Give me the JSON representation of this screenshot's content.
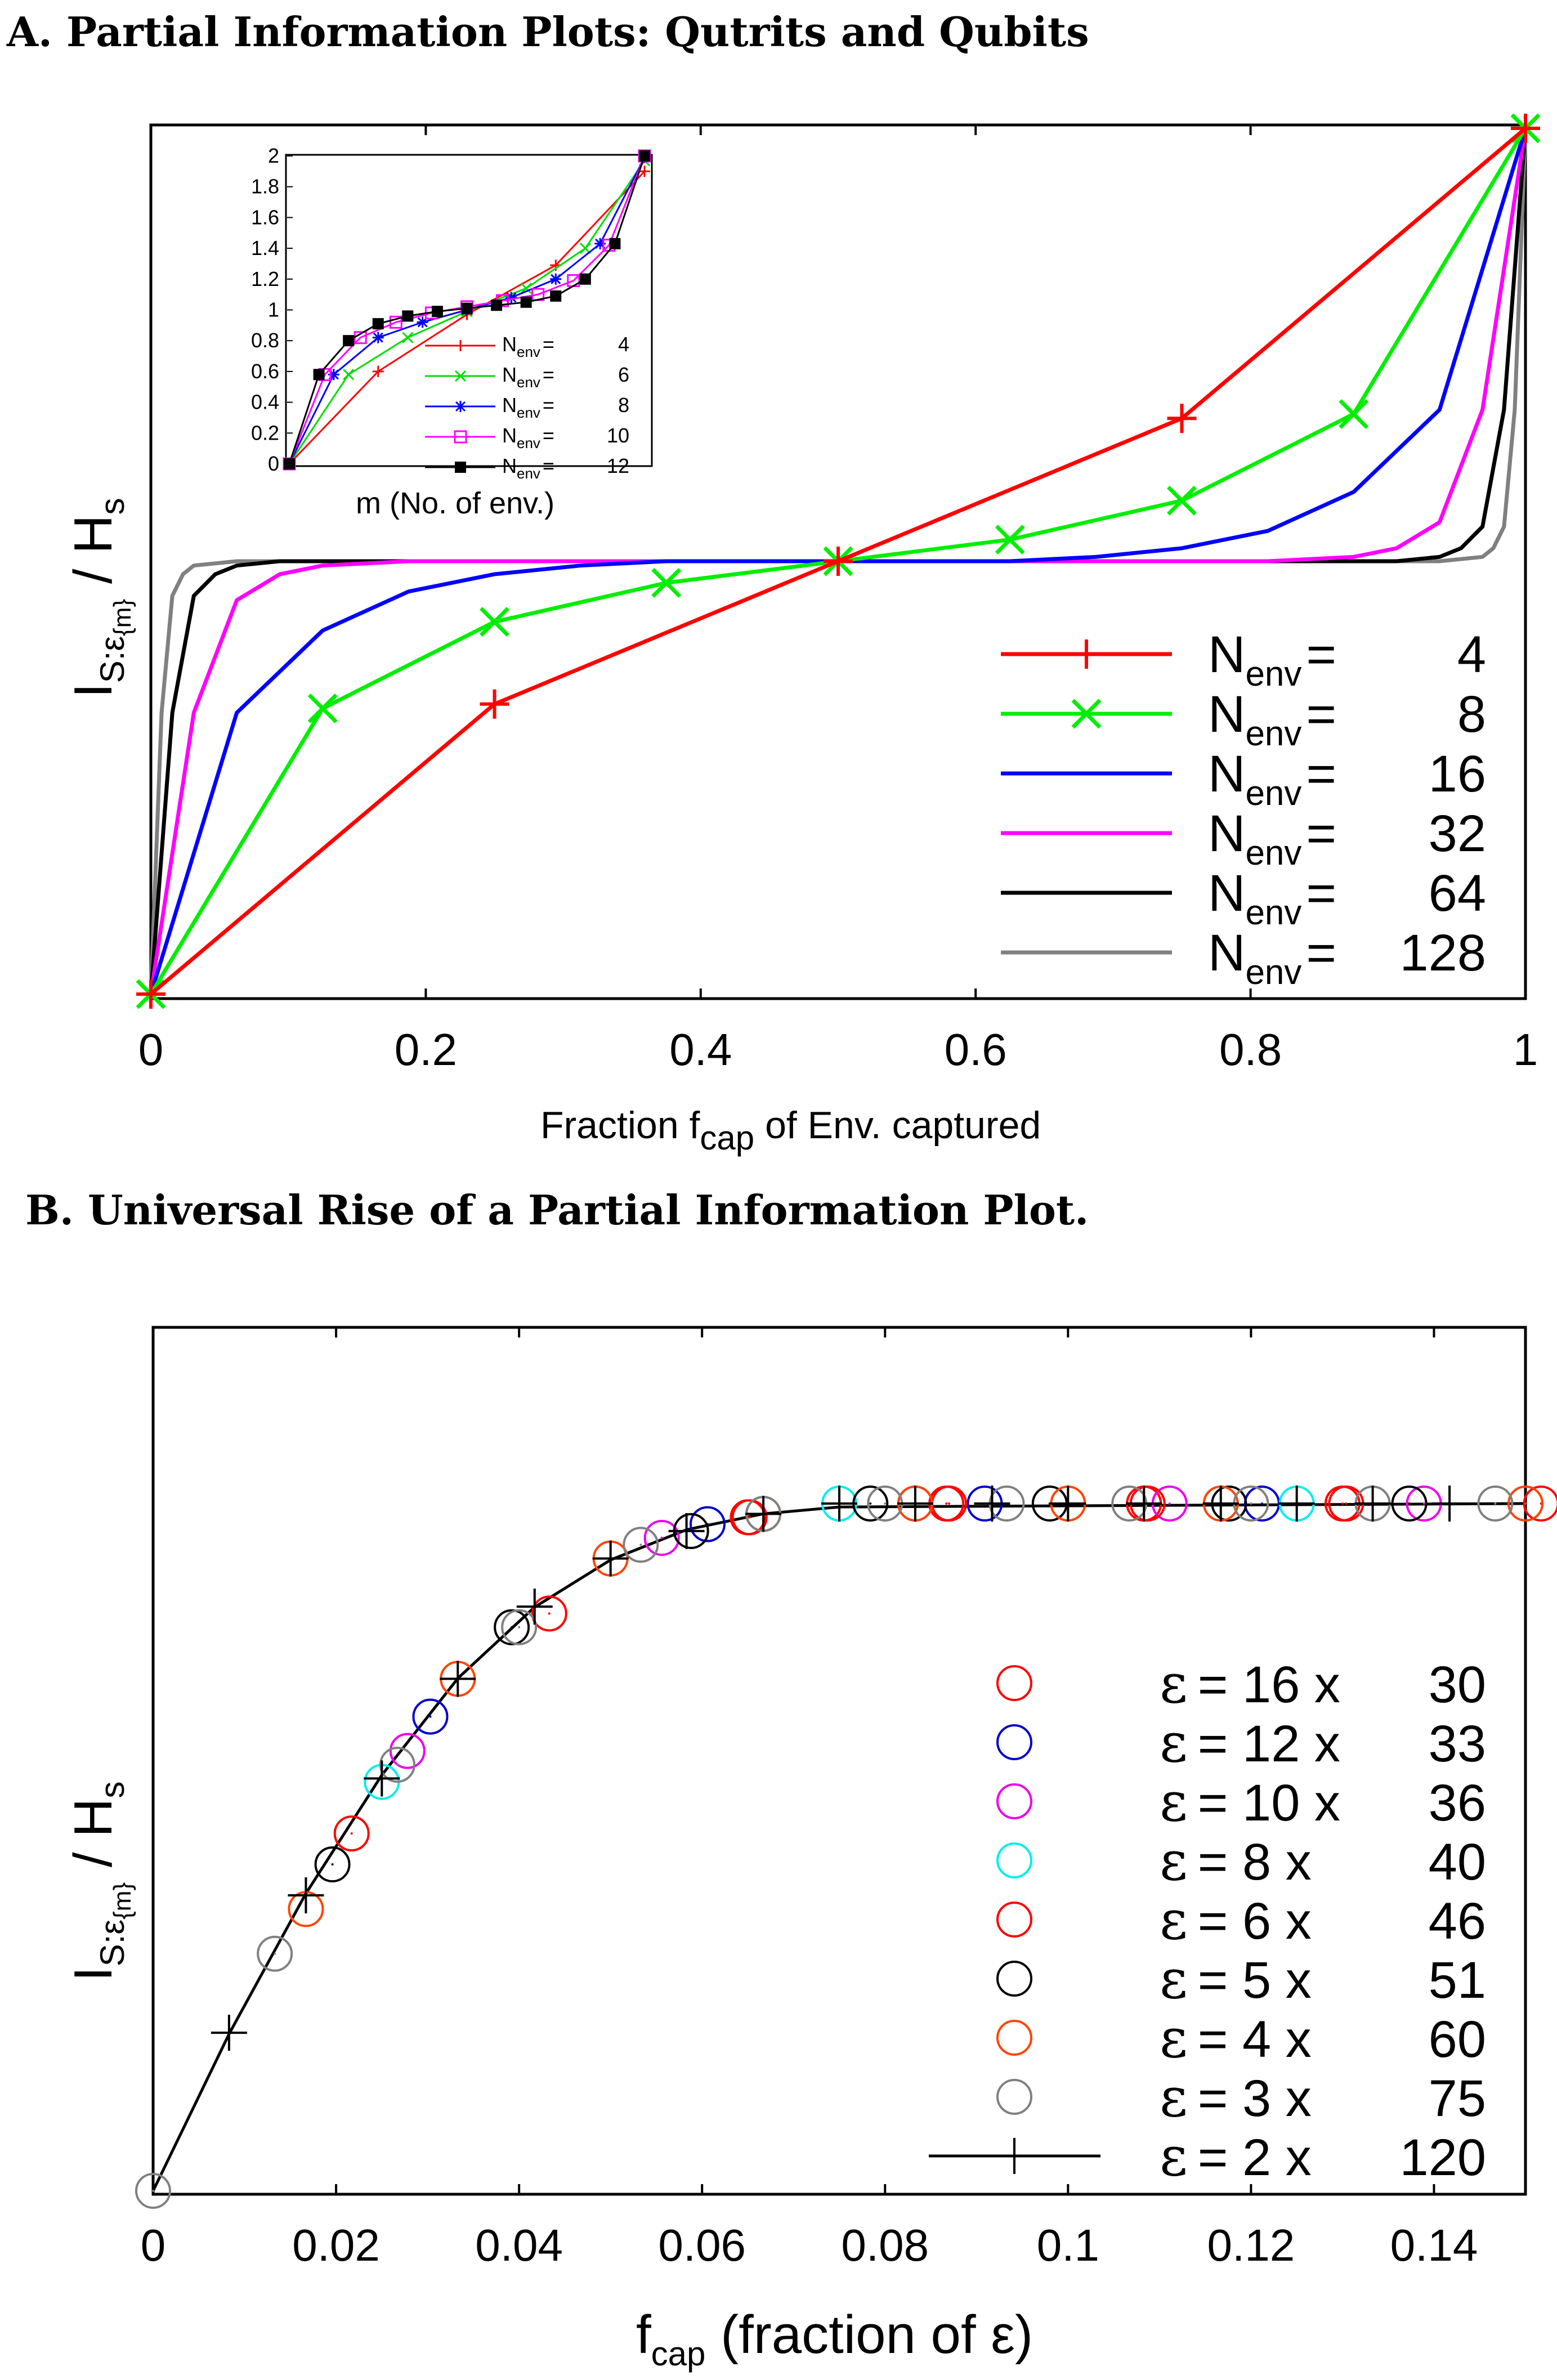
{
  "panelA": {
    "heading": "A. Partial Information Plots: Qutrits and Qubits",
    "xlabel": {
      "main": "Fraction f",
      "sub": "cap",
      "tail": " of Env. captured"
    },
    "ylabel": {
      "I": "I",
      "sub": "S:ε",
      "subsub": "{m}",
      "tail": " / H",
      "tailsub": "s"
    },
    "xticks": [
      "0",
      "0.2",
      "0.4",
      "0.6",
      "0.8",
      "1"
    ],
    "legend": [
      {
        "N": "4",
        "color": "#ff0000"
      },
      {
        "N": "8",
        "color": "#00ee00"
      },
      {
        "N": "16",
        "color": "#0000ff"
      },
      {
        "N": "32",
        "color": "#ff00ff"
      },
      {
        "N": "64",
        "color": "#000000"
      },
      {
        "N": "128",
        "color": "#808080"
      }
    ],
    "legend_prefix": "N",
    "legend_sub": "env",
    "legend_eq": "=",
    "inset": {
      "xlabel": "m (No. of env.)",
      "yticks": [
        "0",
        "0.2",
        "0.4",
        "0.6",
        "0.8",
        "1",
        "1.2",
        "1.4",
        "1.6",
        "1.8",
        "2"
      ],
      "legend": [
        {
          "N": "4",
          "color": "#ff0000"
        },
        {
          "N": "6",
          "color": "#00dd00"
        },
        {
          "N": "8",
          "color": "#0000ff"
        },
        {
          "N": "10",
          "color": "#ff00ff"
        },
        {
          "N": "12",
          "color": "#000000"
        }
      ]
    }
  },
  "panelB": {
    "heading": "B. Universal Rise of a Partial Information Plot.",
    "xlabel": {
      "main": "f",
      "sub": "cap",
      "tail": " (fraction of ε)"
    },
    "ylabel": {
      "I": "I",
      "sub": "S:ε",
      "subsub": "{m}",
      "tail": " / H",
      "tailsub": "s"
    },
    "xticks": [
      "0",
      "0.02",
      "0.04",
      "0.06",
      "0.08",
      "0.1",
      "0.12",
      "0.14"
    ],
    "legend": [
      {
        "label": "= 16 x",
        "n": "30",
        "color": "#ff0000"
      },
      {
        "label": "= 12 x",
        "n": "33",
        "color": "#0000cc"
      },
      {
        "label": "= 10 x",
        "n": "36",
        "color": "#ee00ee"
      },
      {
        "label": "=   8 x",
        "n": "40",
        "color": "#00eeee"
      },
      {
        "label": "=   6 x",
        "n": "46",
        "color": "#ff0000"
      },
      {
        "label": "=   5 x",
        "n": "51",
        "color": "#000000"
      },
      {
        "label": "=   4 x",
        "n": "60",
        "color": "#ff4400"
      },
      {
        "label": "=   3 x",
        "n": "75",
        "color": "#808080"
      },
      {
        "label": "=   2 x",
        "n": "120",
        "color": "#000000"
      }
    ],
    "legend_symbol": "ε"
  },
  "chart_data": [
    {
      "type": "line",
      "title": "A. Partial Information Plots: Qutrits and Qubits",
      "xlabel": "Fraction f_cap of Env. captured",
      "ylabel": "I_{S:E{m}} / H_s",
      "xlim": [
        0,
        1
      ],
      "ylim": [
        0,
        2
      ],
      "series": [
        {
          "name": "N_env = 4",
          "color": "#ff0000",
          "x": [
            0,
            0.25,
            0.5,
            0.75,
            1
          ],
          "y": [
            0,
            0.67,
            1,
            1.33,
            2
          ]
        },
        {
          "name": "N_env = 8",
          "color": "#00ee00",
          "x": [
            0,
            0.125,
            0.25,
            0.375,
            0.5,
            0.625,
            0.75,
            0.875,
            1
          ],
          "y": [
            0,
            0.66,
            0.86,
            0.95,
            1,
            1.05,
            1.14,
            1.34,
            2
          ]
        },
        {
          "name": "N_env = 16",
          "color": "#0000ff",
          "x": [
            0,
            0.0625,
            0.125,
            0.1875,
            0.25,
            0.3125,
            0.375,
            0.5,
            0.625,
            0.6875,
            0.75,
            0.8125,
            0.875,
            0.9375,
            1
          ],
          "y": [
            0,
            0.65,
            0.84,
            0.93,
            0.97,
            0.99,
            1,
            1,
            1,
            1.01,
            1.03,
            1.07,
            1.16,
            1.35,
            2
          ]
        },
        {
          "name": "N_env = 32",
          "color": "#ff00ff",
          "x": [
            0,
            0.03125,
            0.0625,
            0.09375,
            0.125,
            0.1875,
            0.25,
            0.5,
            0.75,
            0.8125,
            0.875,
            0.90625,
            0.9375,
            0.96875,
            1
          ],
          "y": [
            0,
            0.65,
            0.91,
            0.97,
            0.99,
            1,
            1,
            1,
            1,
            1,
            1.01,
            1.03,
            1.09,
            1.35,
            2
          ]
        },
        {
          "name": "N_env = 64",
          "color": "#000000",
          "x": [
            0,
            0.015625,
            0.03125,
            0.046875,
            0.0625,
            0.09375,
            0.5,
            0.90625,
            0.9375,
            0.953125,
            0.96875,
            0.984375,
            1
          ],
          "y": [
            0,
            0.65,
            0.92,
            0.97,
            0.99,
            1,
            1,
            1,
            1.01,
            1.03,
            1.08,
            1.35,
            2
          ]
        },
        {
          "name": "N_env = 128",
          "color": "#808080",
          "x": [
            0,
            0.0078,
            0.0156,
            0.0234,
            0.03125,
            0.0625,
            0.5,
            0.9375,
            0.96875,
            0.9766,
            0.9844,
            0.9922,
            1
          ],
          "y": [
            0,
            0.65,
            0.92,
            0.97,
            0.99,
            1,
            1,
            1,
            1.01,
            1.03,
            1.08,
            1.35,
            2
          ]
        }
      ]
    },
    {
      "type": "line",
      "title": "inset",
      "xlabel": "m (No. of env.)",
      "ylabel": "",
      "ylim": [
        0,
        2
      ],
      "series": [
        {
          "name": "N_env = 4",
          "color": "#ff0000",
          "x": [
            0,
            1,
            2,
            3,
            4
          ],
          "y": [
            0,
            0.6,
            0.97,
            1.29,
            1.9
          ]
        },
        {
          "name": "N_env = 6",
          "color": "#00dd00",
          "x": [
            0,
            1,
            2,
            3,
            4,
            5,
            6
          ],
          "y": [
            0,
            0.58,
            0.82,
            0.99,
            1.14,
            1.4,
            1.97
          ]
        },
        {
          "name": "N_env = 8",
          "color": "#0000ff",
          "x": [
            0,
            1,
            2,
            3,
            4,
            5,
            6,
            7,
            8
          ],
          "y": [
            0,
            0.58,
            0.82,
            0.92,
            1,
            1.08,
            1.2,
            1.43,
            1.99
          ]
        },
        {
          "name": "N_env = 10",
          "color": "#ff00ff",
          "x": [
            0,
            1,
            2,
            3,
            4,
            5,
            6,
            7,
            8,
            9,
            10
          ],
          "y": [
            0,
            0.58,
            0.82,
            0.92,
            0.98,
            1.02,
            1.06,
            1.1,
            1.19,
            1.42,
            2
          ]
        },
        {
          "name": "N_env = 12",
          "color": "#000000",
          "x": [
            0,
            1,
            2,
            3,
            4,
            5,
            6,
            7,
            8,
            9,
            10,
            11,
            12
          ],
          "y": [
            0,
            0.58,
            0.8,
            0.91,
            0.96,
            0.99,
            1.01,
            1.03,
            1.05,
            1.09,
            1.2,
            1.43,
            2
          ]
        }
      ]
    },
    {
      "type": "scatter",
      "title": "B. Universal Rise of a Partial Information Plot.",
      "xlabel": "f_cap (fraction of ε)",
      "ylabel": "I_{S:E{m}} / H_s",
      "xlim": [
        0,
        0.15
      ],
      "ylim": [
        0,
        1
      ],
      "curve": {
        "x": [
          0,
          0.00833,
          0.01667,
          0.025,
          0.03333,
          0.04167,
          0.05,
          0.05833,
          0.06667,
          0.075,
          0.15
        ],
        "y": [
          0,
          0.229,
          0.432,
          0.605,
          0.746,
          0.849,
          0.918,
          0.962,
          0.985,
          0.995,
          1.0
        ]
      },
      "series": [
        {
          "name": "ε = 16 x 30",
          "color": "#ff0000",
          "x": [
            0.0217,
            0.0433,
            0.065,
            0.0867,
            0.1083,
            0.13,
            0.1517
          ],
          "y": [
            0.52,
            0.84,
            0.98,
            1,
            1,
            1,
            1
          ]
        },
        {
          "name": "ε = 12 x 33",
          "color": "#0000cc",
          "x": [
            0.0303,
            0.0606,
            0.0909,
            0.1212
          ],
          "y": [
            0.69,
            0.97,
            1,
            1
          ]
        },
        {
          "name": "ε = 10 x 36",
          "color": "#ee00ee",
          "x": [
            0.0278,
            0.0556,
            0.0833,
            0.1111,
            0.1389
          ],
          "y": [
            0.64,
            0.95,
            1,
            1,
            1
          ]
        },
        {
          "name": "ε = 8 x 40",
          "color": "#00eeee",
          "x": [
            0.025,
            0.075,
            0.125
          ],
          "y": [
            0.595,
            1,
            1
          ]
        },
        {
          "name": "ε = 6 x 46",
          "color": "#ff0000",
          "x": [
            0.0652,
            0.087,
            0.1087,
            0.1304
          ],
          "y": [
            0.98,
            1,
            1,
            1
          ]
        },
        {
          "name": "ε = 5 x 51",
          "color": "#000000",
          "x": [
            0.0196,
            0.0392,
            0.0588,
            0.0784,
            0.098,
            0.1176,
            0.1373
          ],
          "y": [
            0.475,
            0.82,
            0.96,
            1,
            1,
            1,
            1
          ]
        },
        {
          "name": "ε = 4 x 60",
          "color": "#ff4400",
          "x": [
            0.0167,
            0.0333,
            0.05,
            0.0667,
            0.0833,
            0.1,
            0.1167,
            0.15
          ],
          "y": [
            0.41,
            0.745,
            0.92,
            0.985,
            1,
            1,
            1,
            1
          ]
        },
        {
          "name": "ε = 3 x 75",
          "color": "#808080",
          "x": [
            0,
            0.0133,
            0.0267,
            0.04,
            0.0533,
            0.0667,
            0.08,
            0.0933,
            0.1067,
            0.12,
            0.1333,
            0.1467
          ],
          "y": [
            0,
            0.345,
            0.62,
            0.82,
            0.94,
            0.985,
            1,
            1,
            1,
            1,
            1,
            1
          ]
        },
        {
          "name": "ε = 2 x 120",
          "color": "#000000",
          "x": [
            0.0083,
            0.0167,
            0.025,
            0.0333,
            0.0417,
            0.05,
            0.0583,
            0.0667,
            0.075,
            0.0833,
            0.0917,
            0.1,
            0.1083,
            0.1167,
            0.125,
            0.1333,
            0.1417
          ],
          "y": [
            0.23,
            0.43,
            0.6,
            0.745,
            0.85,
            0.92,
            0.96,
            0.985,
            1,
            1,
            1,
            1,
            1,
            1,
            1,
            1,
            1
          ]
        }
      ]
    }
  ]
}
